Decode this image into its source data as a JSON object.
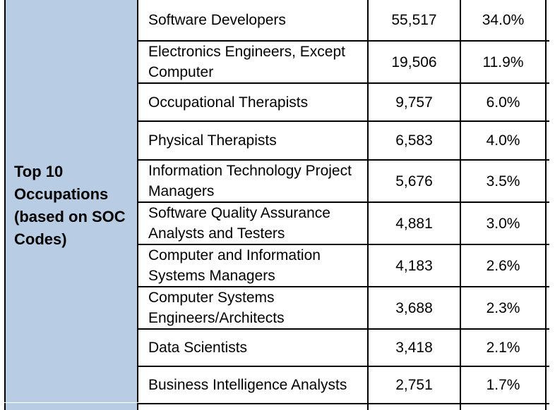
{
  "category_label": "Top 10\nOccupations\n(based on SOC\nCodes)",
  "rows": [
    {
      "occupation": "Software Developers",
      "count": "55,517",
      "percent": "34.0%"
    },
    {
      "occupation": "Electronics Engineers, Except Computer",
      "count": "19,506",
      "percent": "11.9%"
    },
    {
      "occupation": "Occupational Therapists",
      "count": "9,757",
      "percent": "6.0%"
    },
    {
      "occupation": "Physical Therapists",
      "count": "6,583",
      "percent": "4.0%"
    },
    {
      "occupation": "Information Technology Project Managers",
      "count": "5,676",
      "percent": "3.5%"
    },
    {
      "occupation": "Software Quality Assurance Analysts and Testers",
      "count": "4,881",
      "percent": "3.0%"
    },
    {
      "occupation": "Computer and Information Systems Managers",
      "count": "4,183",
      "percent": "2.6%"
    },
    {
      "occupation": "Computer Systems Engineers/Architects",
      "count": "3,688",
      "percent": "2.3%"
    },
    {
      "occupation": "Data Scientists",
      "count": "3,418",
      "percent": "2.1%"
    },
    {
      "occupation": "Business Intelligence Analysts",
      "count": "2,751",
      "percent": "1.7%"
    }
  ],
  "colors": {
    "category_fill": "#b8cce4",
    "grid_line": "#000000"
  }
}
